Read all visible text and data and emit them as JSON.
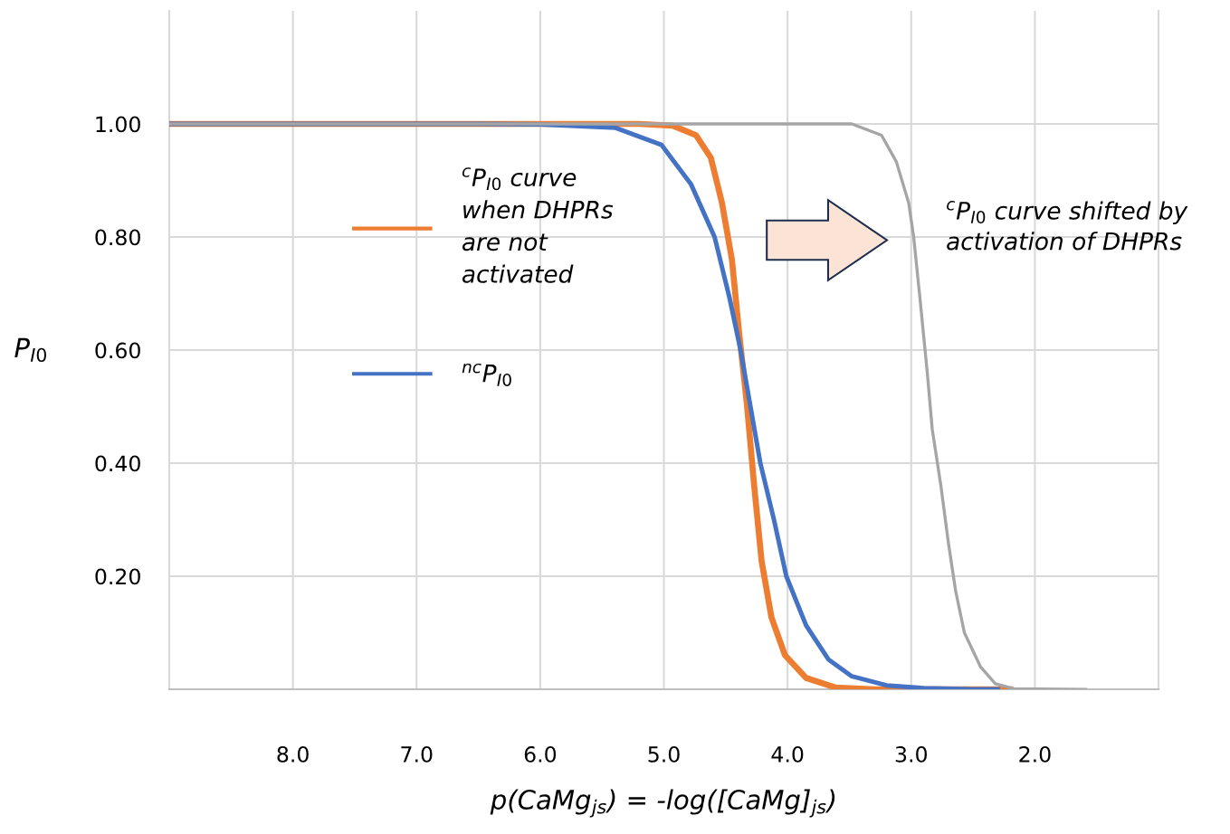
{
  "chart_data": {
    "type": "line",
    "xlabel": "p(CaMg$_{js}$) = -log([CaMg]$_{js}$)",
    "ylabel": "P$_{I0}$",
    "xlim": [
      9.0,
      1.0
    ],
    "xticks": [
      {
        "value": 8,
        "label": "8.0"
      },
      {
        "value": 7,
        "label": "7.0"
      },
      {
        "value": 6,
        "label": "6.0"
      },
      {
        "value": 5,
        "label": "5.0"
      },
      {
        "value": 4,
        "label": "4.0"
      },
      {
        "value": 3,
        "label": "3.0"
      },
      {
        "value": 2,
        "label": "2.0"
      }
    ],
    "ylim": [
      0,
      1.2
    ],
    "yticks": [
      {
        "value": 0.2,
        "label": "0.20"
      },
      {
        "value": 0.4,
        "label": "0.40"
      },
      {
        "value": 0.6,
        "label": "0.60"
      },
      {
        "value": 0.8,
        "label": "0.80"
      },
      {
        "value": 1.0,
        "label": "1.00"
      }
    ],
    "grid": true,
    "legend": "center",
    "marker": "none",
    "line_style": "solid",
    "series": [
      {
        "name": "$^{c}$P$_{I0}$ curve\nwhen DHPRs\nare not\nactivated",
        "color": "#ed7d31",
        "x": [
          9.0,
          6.0,
          5.2,
          4.93,
          4.74,
          4.62,
          4.53,
          4.45,
          4.39,
          4.33,
          4.27,
          4.21,
          4.13,
          4.02,
          3.85,
          3.61,
          3.3,
          2.2
        ],
        "values": [
          1.0,
          1.0,
          1.0,
          0.997,
          0.98,
          0.94,
          0.86,
          0.76,
          0.627,
          0.507,
          0.36,
          0.227,
          0.127,
          0.06,
          0.02,
          0.003,
          0.0,
          0.0
        ]
      },
      {
        "name": "$^{nc}$P$_{I0}$",
        "color": "#4472c4",
        "x": [
          9.0,
          6.5,
          6.0,
          5.39,
          5.02,
          4.78,
          4.59,
          4.47,
          4.38,
          4.3,
          4.22,
          4.11,
          4.01,
          3.85,
          3.67,
          3.48,
          3.2,
          2.9,
          2.5,
          2.3
        ],
        "values": [
          1.0,
          1.0,
          0.999,
          0.993,
          0.963,
          0.893,
          0.8,
          0.693,
          0.6,
          0.5,
          0.4,
          0.3,
          0.2,
          0.113,
          0.053,
          0.023,
          0.007,
          0.002,
          0.0,
          0.0
        ]
      },
      {
        "color": "#a5a5a5",
        "x": [
          9.0,
          4.0,
          3.48,
          3.24,
          3.12,
          3.02,
          2.98,
          2.93,
          2.87,
          2.83,
          2.76,
          2.7,
          2.64,
          2.57,
          2.44,
          2.32,
          2.17,
          1.59
        ],
        "values": [
          1.0,
          1.0,
          1.0,
          0.98,
          0.933,
          0.86,
          0.8,
          0.693,
          0.56,
          0.46,
          0.36,
          0.26,
          0.173,
          0.1,
          0.04,
          0.01,
          0.001,
          0.0
        ]
      }
    ],
    "annotations": [
      "$^{c}$P$_{I0}$ curve shifted by\nactivation of DHPRs"
    ]
  }
}
